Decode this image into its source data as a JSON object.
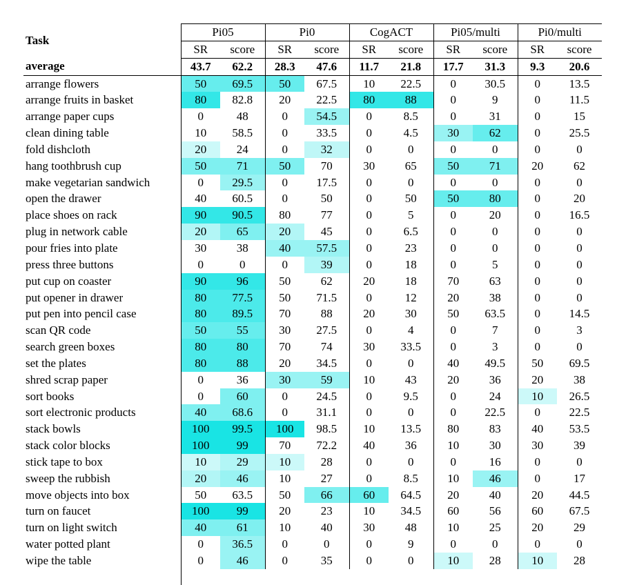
{
  "header": {
    "task_label": "Task",
    "groups": [
      "Pi05",
      "Pi0",
      "CogACT",
      "Pi05/multi",
      "Pi0/multi"
    ],
    "sub_labels": [
      "SR",
      "score"
    ]
  },
  "average": {
    "label": "average",
    "values": [
      "43.7",
      "62.2",
      "28.3",
      "47.6",
      "11.7",
      "21.8",
      "17.7",
      "31.3",
      "9.3",
      "20.6"
    ]
  },
  "rows": [
    {
      "task": "arrange flowers",
      "values": [
        "50",
        "69.5",
        "50",
        "67.5",
        "10",
        "22.5",
        "0",
        "30.5",
        "0",
        "13.5"
      ],
      "shade": [
        0.6,
        0.6,
        0.6,
        0,
        0,
        0,
        0,
        0,
        0,
        0
      ]
    },
    {
      "task": "arrange fruits in basket",
      "values": [
        "80",
        "82.8",
        "20",
        "22.5",
        "80",
        "88",
        "0",
        "9",
        "0",
        "11.5"
      ],
      "shade": [
        0.8,
        0,
        0,
        0,
        0.8,
        0.8,
        0,
        0,
        0,
        0
      ]
    },
    {
      "task": "arrange paper cups",
      "values": [
        "0",
        "48",
        "0",
        "54.5",
        "0",
        "8.5",
        "0",
        "31",
        "0",
        "15"
      ],
      "shade": [
        0,
        0,
        0,
        0.4,
        0,
        0,
        0,
        0,
        0,
        0
      ]
    },
    {
      "task": "clean dining table",
      "values": [
        "10",
        "58.5",
        "0",
        "33.5",
        "0",
        "4.5",
        "30",
        "62",
        "0",
        "25.5"
      ],
      "shade": [
        0,
        0,
        0,
        0,
        0,
        0,
        0.4,
        0.6,
        0,
        0
      ]
    },
    {
      "task": "fold dishcloth",
      "values": [
        "20",
        "24",
        "0",
        "32",
        "0",
        "0",
        "0",
        "0",
        "0",
        "0"
      ],
      "shade": [
        0.2,
        0,
        0,
        0.25,
        0,
        0,
        0,
        0,
        0,
        0
      ]
    },
    {
      "task": "hang toothbrush cup",
      "values": [
        "50",
        "71",
        "50",
        "70",
        "30",
        "65",
        "50",
        "71",
        "20",
        "62"
      ],
      "shade": [
        0.5,
        0.5,
        0.5,
        0,
        0,
        0,
        0.5,
        0.5,
        0,
        0
      ]
    },
    {
      "task": "make vegetarian sandwich",
      "values": [
        "0",
        "29.5",
        "0",
        "17.5",
        "0",
        "0",
        "0",
        "0",
        "0",
        "0"
      ],
      "shade": [
        0,
        0.4,
        0,
        0,
        0,
        0,
        0,
        0,
        0,
        0
      ]
    },
    {
      "task": "open the drawer",
      "values": [
        "40",
        "60.5",
        "0",
        "50",
        "0",
        "50",
        "50",
        "80",
        "0",
        "20"
      ],
      "shade": [
        0,
        0,
        0,
        0,
        0,
        0,
        0.6,
        0.6,
        0,
        0
      ]
    },
    {
      "task": "place shoes on rack",
      "values": [
        "90",
        "90.5",
        "80",
        "77",
        "0",
        "5",
        "0",
        "20",
        "0",
        "16.5"
      ],
      "shade": [
        0.8,
        0.8,
        0,
        0,
        0,
        0,
        0,
        0,
        0,
        0
      ]
    },
    {
      "task": "plug in network cable",
      "values": [
        "20",
        "65",
        "20",
        "45",
        "0",
        "6.5",
        "0",
        "0",
        "0",
        "0"
      ],
      "shade": [
        0.3,
        0.5,
        0.3,
        0,
        0,
        0,
        0,
        0,
        0,
        0
      ]
    },
    {
      "task": "pour fries into plate",
      "values": [
        "30",
        "38",
        "40",
        "57.5",
        "0",
        "23",
        "0",
        "0",
        "0",
        "0"
      ],
      "shade": [
        0,
        0,
        0.4,
        0.4,
        0,
        0,
        0,
        0,
        0,
        0
      ]
    },
    {
      "task": "press three buttons",
      "values": [
        "0",
        "0",
        "0",
        "39",
        "0",
        "18",
        "0",
        "5",
        "0",
        "0"
      ],
      "shade": [
        0,
        0,
        0,
        0.3,
        0,
        0,
        0,
        0,
        0,
        0
      ]
    },
    {
      "task": "put cup on coaster",
      "values": [
        "90",
        "96",
        "50",
        "62",
        "20",
        "18",
        "70",
        "63",
        "0",
        "0"
      ],
      "shade": [
        0.8,
        0.8,
        0,
        0,
        0,
        0,
        0,
        0,
        0,
        0
      ]
    },
    {
      "task": "put opener in drawer",
      "values": [
        "80",
        "77.5",
        "50",
        "71.5",
        "0",
        "12",
        "20",
        "38",
        "0",
        "0"
      ],
      "shade": [
        0.7,
        0.7,
        0,
        0,
        0,
        0,
        0,
        0,
        0,
        0
      ]
    },
    {
      "task": "put pen into pencil case",
      "values": [
        "80",
        "89.5",
        "70",
        "88",
        "20",
        "30",
        "50",
        "63.5",
        "0",
        "14.5"
      ],
      "shade": [
        0.7,
        0.7,
        0,
        0,
        0,
        0,
        0,
        0,
        0,
        0
      ]
    },
    {
      "task": "scan QR code",
      "values": [
        "50",
        "55",
        "30",
        "27.5",
        "0",
        "4",
        "0",
        "7",
        "0",
        "3"
      ],
      "shade": [
        0.6,
        0.6,
        0,
        0,
        0,
        0,
        0,
        0,
        0,
        0
      ]
    },
    {
      "task": "search green boxes",
      "values": [
        "80",
        "80",
        "70",
        "74",
        "30",
        "33.5",
        "0",
        "3",
        "0",
        "0"
      ],
      "shade": [
        0.7,
        0.7,
        0,
        0,
        0,
        0,
        0,
        0,
        0,
        0
      ]
    },
    {
      "task": "set the plates",
      "values": [
        "80",
        "88",
        "20",
        "34.5",
        "0",
        "0",
        "40",
        "49.5",
        "50",
        "69.5"
      ],
      "shade": [
        0.7,
        0.7,
        0,
        0,
        0,
        0,
        0,
        0,
        0,
        0
      ]
    },
    {
      "task": "shred scrap paper",
      "values": [
        "0",
        "36",
        "30",
        "59",
        "10",
        "43",
        "20",
        "36",
        "20",
        "38"
      ],
      "shade": [
        0,
        0,
        0.4,
        0.4,
        0,
        0,
        0,
        0,
        0,
        0
      ]
    },
    {
      "task": "sort books",
      "values": [
        "0",
        "60",
        "0",
        "24.5",
        "0",
        "9.5",
        "0",
        "24",
        "10",
        "26.5"
      ],
      "shade": [
        0,
        0.5,
        0,
        0,
        0,
        0,
        0,
        0,
        0.2,
        0
      ]
    },
    {
      "task": "sort electronic products",
      "values": [
        "40",
        "68.6",
        "0",
        "31.1",
        "0",
        "0",
        "0",
        "22.5",
        "0",
        "22.5"
      ],
      "shade": [
        0.5,
        0.5,
        0,
        0,
        0,
        0,
        0,
        0,
        0,
        0
      ]
    },
    {
      "task": "stack bowls",
      "values": [
        "100",
        "99.5",
        "100",
        "98.5",
        "10",
        "13.5",
        "80",
        "83",
        "40",
        "53.5"
      ],
      "shade": [
        0.9,
        0.9,
        0.9,
        0,
        0,
        0,
        0,
        0,
        0,
        0
      ]
    },
    {
      "task": "stack color blocks",
      "values": [
        "100",
        "99",
        "70",
        "72.2",
        "40",
        "36",
        "10",
        "30",
        "30",
        "39"
      ],
      "shade": [
        0.9,
        0.9,
        0,
        0,
        0,
        0,
        0,
        0,
        0,
        0
      ]
    },
    {
      "task": "stick tape to box",
      "values": [
        "10",
        "29",
        "10",
        "28",
        "0",
        "0",
        "0",
        "16",
        "0",
        "0"
      ],
      "shade": [
        0.2,
        0.3,
        0.2,
        0,
        0,
        0,
        0,
        0,
        0,
        0
      ]
    },
    {
      "task": "sweep the rubbish",
      "values": [
        "20",
        "46",
        "10",
        "27",
        "0",
        "8.5",
        "10",
        "46",
        "0",
        "17"
      ],
      "shade": [
        0.3,
        0.4,
        0,
        0,
        0,
        0,
        0,
        0.4,
        0,
        0
      ]
    },
    {
      "task": "move objects into box",
      "values": [
        "50",
        "63.5",
        "50",
        "66",
        "60",
        "64.5",
        "20",
        "40",
        "20",
        "44.5"
      ],
      "shade": [
        0,
        0,
        0,
        0.5,
        0.6,
        0,
        0,
        0,
        0,
        0
      ]
    },
    {
      "task": "turn on faucet",
      "values": [
        "100",
        "99",
        "20",
        "23",
        "10",
        "34.5",
        "60",
        "56",
        "60",
        "67.5"
      ],
      "shade": [
        0.9,
        0.9,
        0,
        0,
        0,
        0,
        0,
        0,
        0,
        0
      ]
    },
    {
      "task": "turn on light switch",
      "values": [
        "40",
        "61",
        "10",
        "40",
        "30",
        "48",
        "10",
        "25",
        "20",
        "29"
      ],
      "shade": [
        0.5,
        0.5,
        0,
        0,
        0,
        0,
        0,
        0,
        0,
        0
      ]
    },
    {
      "task": "water potted plant",
      "values": [
        "0",
        "36.5",
        "0",
        "0",
        "0",
        "9",
        "0",
        "0",
        "0",
        "0"
      ],
      "shade": [
        0,
        0.4,
        0,
        0,
        0,
        0,
        0,
        0,
        0,
        0
      ]
    },
    {
      "task": "wipe the table",
      "values": [
        "0",
        "46",
        "0",
        "35",
        "0",
        "0",
        "10",
        "28",
        "10",
        "28"
      ],
      "shade": [
        0,
        0.4,
        0,
        0,
        0,
        0,
        0.2,
        0,
        0.2,
        0
      ]
    }
  ]
}
